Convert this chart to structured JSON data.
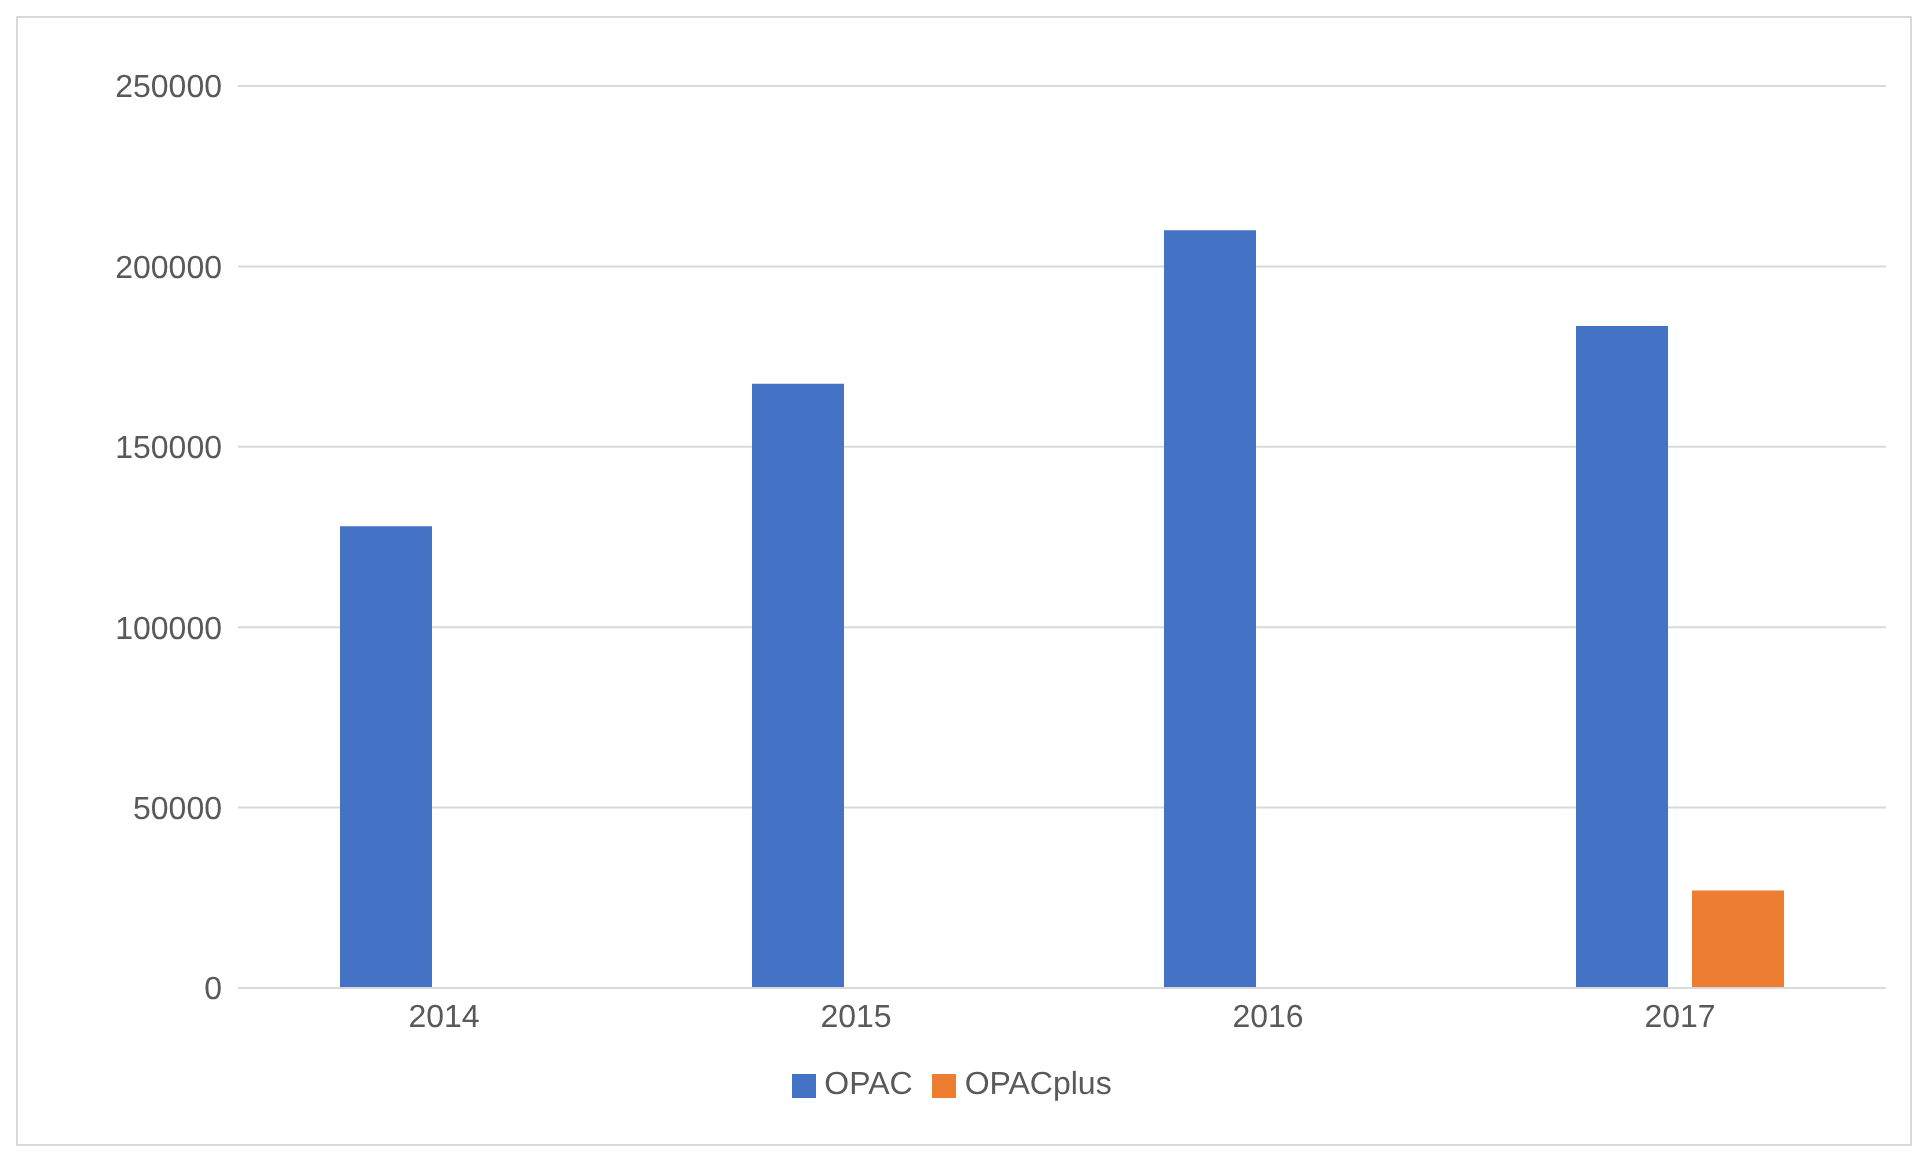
{
  "chart_data": {
    "type": "bar",
    "categories": [
      "2014",
      "2015",
      "2016",
      "2017"
    ],
    "series": [
      {
        "name": "OPAC",
        "color": "#4472c4",
        "values": [
          128000,
          167500,
          210000,
          183500
        ]
      },
      {
        "name": "OPACplus",
        "color": "#ed7d31",
        "values": [
          null,
          null,
          null,
          27000
        ]
      }
    ],
    "ylim": [
      0,
      250000
    ],
    "yticks": [
      0,
      50000,
      100000,
      150000,
      200000,
      250000
    ],
    "grid": "y",
    "legend": "bottom"
  }
}
